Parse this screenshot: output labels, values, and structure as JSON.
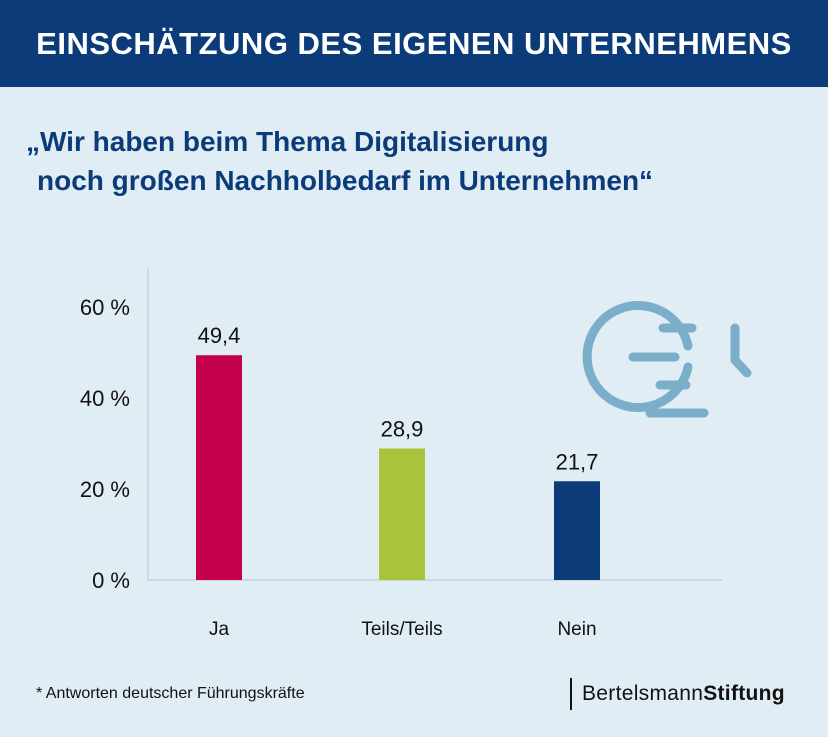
{
  "header": {
    "title": "EINSCHÄTZUNG DES EIGENEN UNTERNEHMENS"
  },
  "subtitle": {
    "line1": "„Wir haben beim Thema Digitalisierung",
    "line2": "noch großen Nachholbedarf im Unternehmen“"
  },
  "chart_data": {
    "type": "bar",
    "categories": [
      "Ja",
      "Teils/Teils",
      "Nein"
    ],
    "values": [
      49.4,
      28.9,
      21.7
    ],
    "value_labels": [
      "49,4",
      "28,9",
      "21,7"
    ],
    "colors": [
      "#c4004b",
      "#a8c43c",
      "#0b3b78"
    ],
    "ylim": [
      0,
      60
    ],
    "yticks": [
      0,
      20,
      40,
      60
    ],
    "ytick_labels": [
      "0 %",
      "20 %",
      "40 %",
      "60 %"
    ],
    "xlabel": "",
    "ylabel": "",
    "grid": false
  },
  "decoration": {
    "icon": "clock-speed-icon",
    "icon_color": "#7bafc9"
  },
  "footnote": "* Antworten deutscher Führungskräfte",
  "brand": {
    "part1": "Bertelsmann",
    "part2": "Stiftung"
  }
}
